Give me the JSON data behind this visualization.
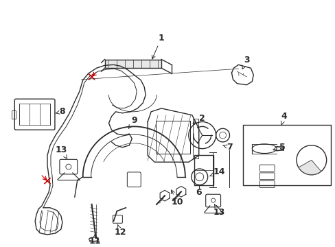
{
  "background_color": "#ffffff",
  "line_color": "#2a2a2a",
  "red_color": "#cc0000",
  "label_color": "#000000",
  "fig_width": 4.89,
  "fig_height": 3.6,
  "dpi": 100,
  "label_fontsize": 9,
  "arrow_lw": 0.7,
  "main_lw": 1.0
}
